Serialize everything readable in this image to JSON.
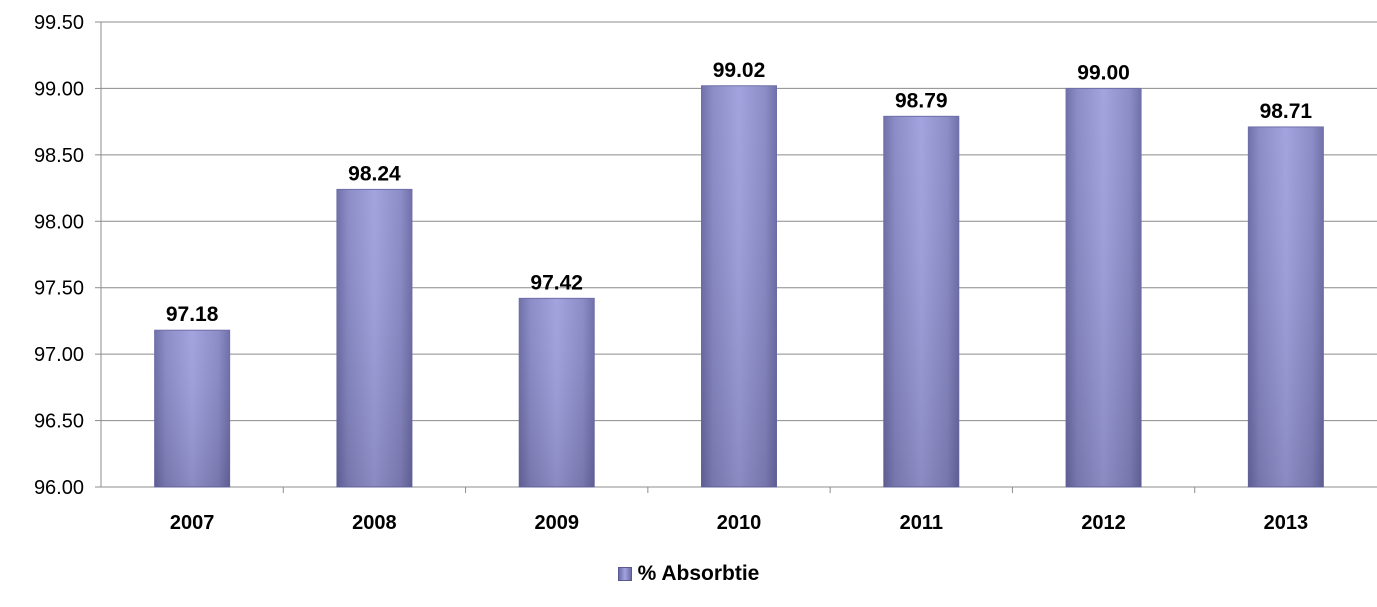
{
  "chart_data": {
    "type": "bar",
    "categories": [
      "2007",
      "2008",
      "2009",
      "2010",
      "2011",
      "2012",
      "2013"
    ],
    "series": [
      {
        "name": "% Absorbtie",
        "values": [
          97.18,
          98.24,
          97.42,
          99.02,
          98.79,
          99.0,
          98.71
        ]
      }
    ],
    "data_labels": [
      "97.18",
      "98.24",
      "97.42",
      "99.02",
      "98.79",
      "99.00",
      "98.71"
    ],
    "ylim": [
      96.0,
      99.5
    ],
    "y_ticks": [
      "96.00",
      "96.50",
      "97.00",
      "97.50",
      "98.00",
      "98.50",
      "99.00",
      "99.50"
    ],
    "grid": true,
    "legend_position": "bottom",
    "bar_color": "#9292d4"
  }
}
